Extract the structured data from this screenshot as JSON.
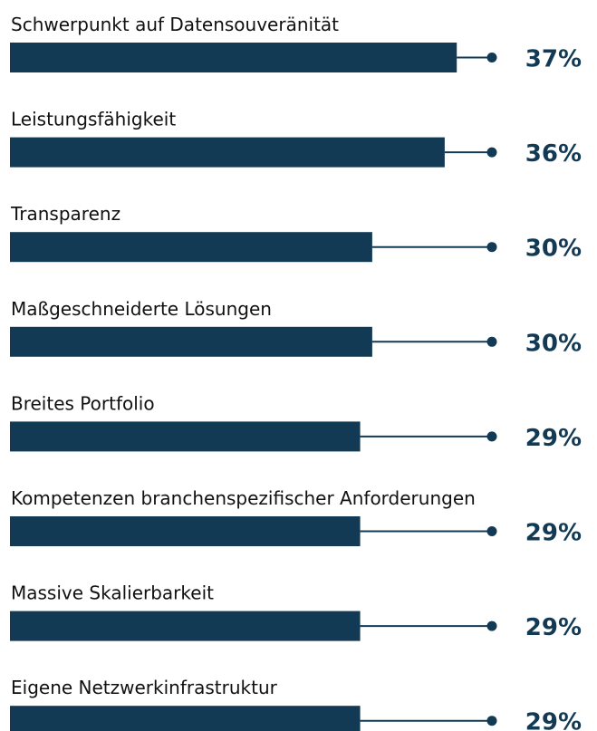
{
  "chart_data": {
    "type": "bar",
    "orientation": "horizontal",
    "categories": [
      "Schwerpunkt auf Datensouveränität",
      "Leistungsfähigkeit",
      "Transparenz",
      "Maßgeschneiderte Lösungen",
      "Breites Portfolio",
      "Kompetenzen branchenspezifischer Anforderungen",
      "Massive Skalierbarkeit",
      "Eigene Netzwerkinfrastruktur"
    ],
    "values": [
      37,
      36,
      30,
      30,
      29,
      29,
      29,
      29
    ],
    "value_labels": [
      "37%",
      "36%",
      "30%",
      "30%",
      "29%",
      "29%",
      "29%",
      "29%"
    ],
    "color": "#133a55"
  }
}
